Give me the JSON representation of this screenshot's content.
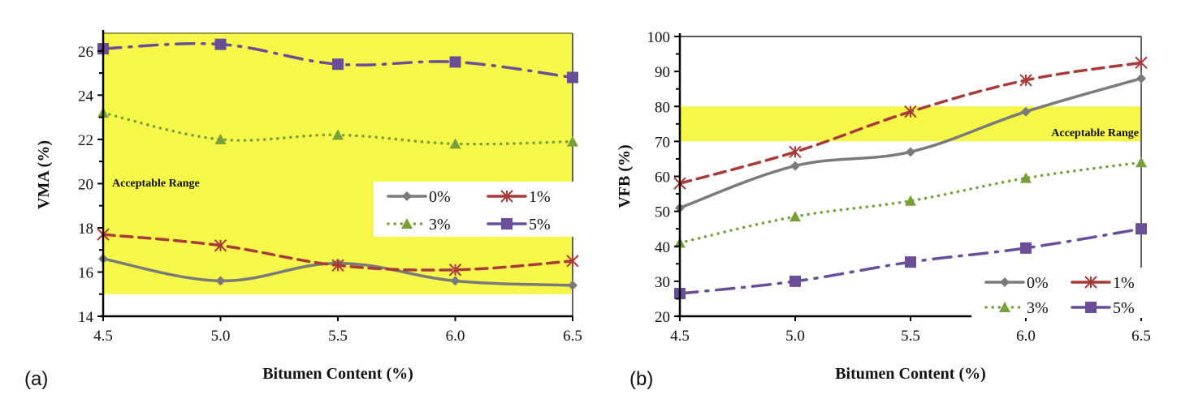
{
  "chart_data": [
    {
      "type": "line",
      "panel_label": "(a)",
      "title": "",
      "xlabel": "Bitumen Content (%)",
      "ylabel": "VMA (%)",
      "x": [
        4.5,
        5.0,
        5.5,
        6.0,
        6.5
      ],
      "x_tick_labels": [
        "4.5",
        "5.0",
        "5.5",
        "6.0",
        "6.5"
      ],
      "ylim": [
        14,
        26.8
      ],
      "y_ticks": [
        14,
        16,
        18,
        20,
        22,
        24,
        26
      ],
      "y_tick_labels": [
        "14",
        "16",
        "18",
        "20",
        "22",
        "24",
        "26"
      ],
      "grid": false,
      "acceptable_range": {
        "label": "Acceptable Range",
        "from": 15,
        "to": 26.8,
        "color": "#f7f74a"
      },
      "legend": {
        "placement": "center-right",
        "columns": 2
      },
      "series": [
        {
          "name": "0%",
          "color": "#7a7a7a",
          "marker": "diamond",
          "line": "solid",
          "values": [
            16.6,
            15.6,
            16.4,
            15.6,
            15.4
          ]
        },
        {
          "name": "1%",
          "color": "#a83a3a",
          "marker": "asterisk",
          "line": "dashed",
          "values": [
            17.7,
            17.2,
            16.3,
            16.1,
            16.5
          ]
        },
        {
          "name": "3%",
          "color": "#77a03a",
          "marker": "triangle",
          "line": "dotted",
          "values": [
            23.2,
            22.0,
            22.2,
            21.8,
            21.9
          ]
        },
        {
          "name": "5%",
          "color": "#6a4f98",
          "marker": "square",
          "line": "dash-dot",
          "values": [
            26.1,
            26.3,
            25.4,
            25.5,
            24.8
          ]
        }
      ]
    },
    {
      "type": "line",
      "panel_label": "(b)",
      "title": "",
      "xlabel": "Bitumen Content (%)",
      "ylabel": "VFB (%)",
      "x": [
        4.5,
        5.0,
        5.5,
        6.0,
        6.5
      ],
      "x_tick_labels": [
        "4.5",
        "5.0",
        "5.5",
        "6.0",
        "6.5"
      ],
      "ylim": [
        20,
        100
      ],
      "y_ticks": [
        20,
        30,
        40,
        50,
        60,
        70,
        80,
        90,
        100
      ],
      "y_tick_labels": [
        "20",
        "30",
        "40",
        "50",
        "60",
        "70",
        "80",
        "90",
        "100"
      ],
      "grid": false,
      "acceptable_range": {
        "label": "Acceptable Range",
        "from": 70,
        "to": 80,
        "color": "#f7f74a"
      },
      "legend": {
        "placement": "bottom-right",
        "columns": 2
      },
      "series": [
        {
          "name": "0%",
          "color": "#7a7a7a",
          "marker": "diamond",
          "line": "solid",
          "values": [
            51,
            63,
            67,
            78.5,
            88
          ]
        },
        {
          "name": "1%",
          "color": "#a83a3a",
          "marker": "asterisk",
          "line": "dashed",
          "values": [
            58,
            67,
            78.5,
            87.5,
            92.5
          ]
        },
        {
          "name": "3%",
          "color": "#77a03a",
          "marker": "triangle",
          "line": "dotted",
          "values": [
            41,
            48.5,
            53,
            59.5,
            64
          ]
        },
        {
          "name": "5%",
          "color": "#6a4f98",
          "marker": "square",
          "line": "dash-dot",
          "values": [
            26.5,
            30,
            35.5,
            39.5,
            45
          ]
        }
      ]
    }
  ]
}
